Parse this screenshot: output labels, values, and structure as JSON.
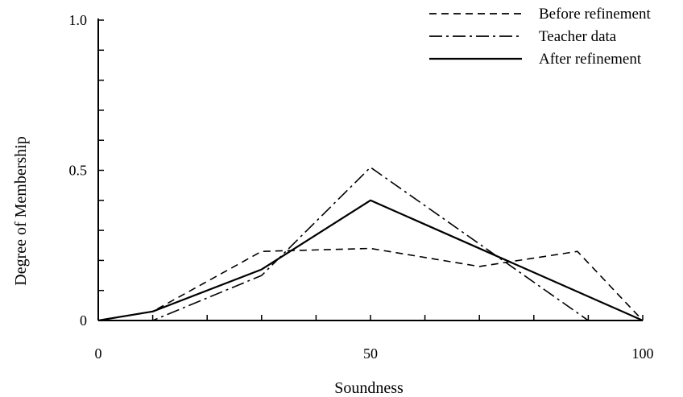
{
  "chart_data": {
    "type": "line",
    "title": "",
    "xlabel": "Soundness",
    "ylabel": "Degree of Membership",
    "xlim": [
      0,
      100
    ],
    "ylim": [
      0,
      1.0
    ],
    "x_ticks": [
      {
        "value": 0,
        "label": "0"
      },
      {
        "value": 50,
        "label": "50"
      },
      {
        "value": 100,
        "label": "100"
      }
    ],
    "y_ticks": [
      {
        "value": 0,
        "label": "0"
      },
      {
        "value": 0.5,
        "label": "0.5"
      },
      {
        "value": 1.0,
        "label": "1.0"
      }
    ],
    "minor_x_tick_step": 10,
    "minor_y_tick_step": 0.1,
    "grid": false,
    "legend_position": "top-right",
    "series": [
      {
        "name": "Before refinement",
        "line_style": "dashed",
        "points": [
          [
            0,
            0
          ],
          [
            10,
            0.03
          ],
          [
            30,
            0.23
          ],
          [
            50,
            0.24
          ],
          [
            70,
            0.18
          ],
          [
            88,
            0.23
          ],
          [
            100,
            0
          ]
        ]
      },
      {
        "name": "Teacher data",
        "line_style": "dashdot",
        "points": [
          [
            0,
            0
          ],
          [
            10,
            0
          ],
          [
            30,
            0.15
          ],
          [
            50,
            0.51
          ],
          [
            90,
            0
          ],
          [
            100,
            0
          ]
        ]
      },
      {
        "name": "After refinement",
        "line_style": "solid",
        "points": [
          [
            0,
            0
          ],
          [
            10,
            0.03
          ],
          [
            30,
            0.17
          ],
          [
            50,
            0.4
          ],
          [
            100,
            0
          ]
        ]
      }
    ]
  }
}
